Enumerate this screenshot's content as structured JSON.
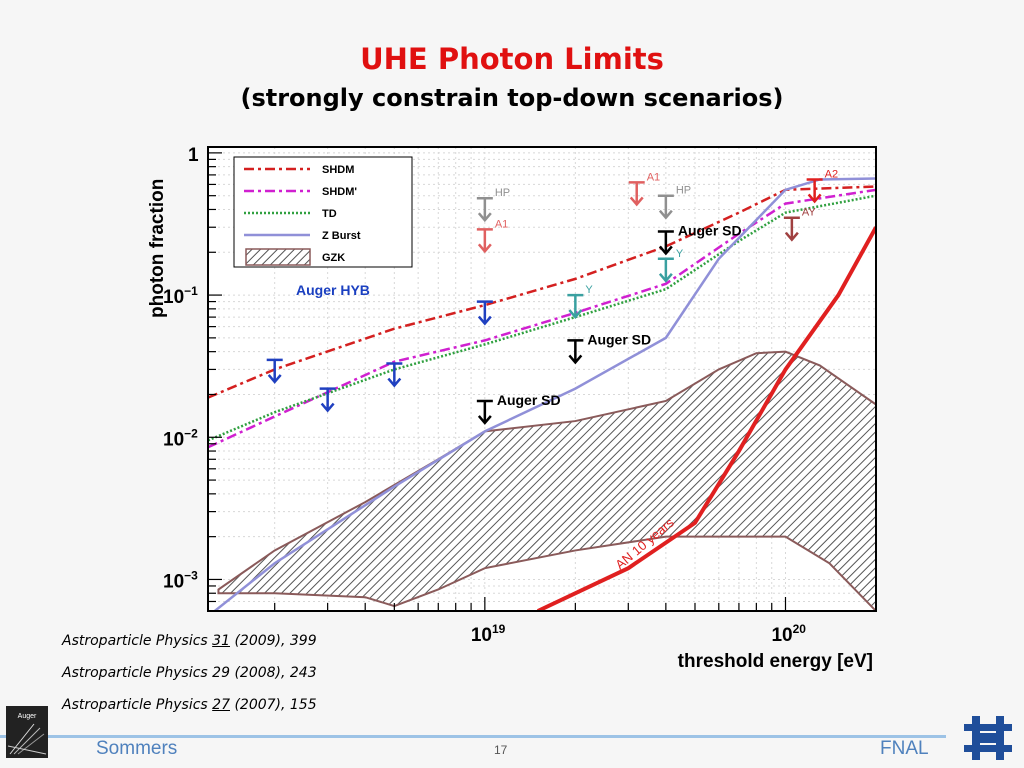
{
  "slide": {
    "title": "UHE Photon Limits",
    "subtitle": "(strongly constrain top-down scenarios)",
    "refs": [
      {
        "journal": "Astroparticle Physics ",
        "vol": "31",
        "rest": " (2009), 399",
        "underline": true
      },
      {
        "journal": "Astroparticle Physics ",
        "vol": "29",
        "rest": " (2008), 243",
        "underline": false
      },
      {
        "journal": "Astroparticle Physics ",
        "vol": "27",
        "rest": " (2007), 155",
        "underline": true
      }
    ],
    "footer": {
      "left": "Sommers",
      "page": "17",
      "right": "FNAL",
      "logo_left_text": "Auger"
    }
  },
  "chart_data": {
    "type": "line",
    "title": "",
    "xlabel": "threshold energy  [eV]",
    "ylabel": "photon fraction",
    "xscale": "log",
    "yscale": "log",
    "xlim": [
      1.2e+18,
      2e+20
    ],
    "ylim": [
      0.0006,
      1.1
    ],
    "x_ticks": [
      {
        "value": 1e+19,
        "label_base": "10",
        "label_exp": "19"
      },
      {
        "value": 1e+20,
        "label_base": "10",
        "label_exp": "20"
      }
    ],
    "y_ticks": [
      {
        "value": 1,
        "label_base": "1",
        "label_exp": ""
      },
      {
        "value": 0.1,
        "label_base": "10",
        "label_exp": "−1"
      },
      {
        "value": 0.01,
        "label_base": "10",
        "label_exp": "−2"
      },
      {
        "value": 0.001,
        "label_base": "10",
        "label_exp": "−3"
      }
    ],
    "legend": {
      "position": "top-left",
      "entries": [
        "SHDM",
        "SHDM'",
        "TD",
        "Z Burst",
        "GZK"
      ]
    },
    "series": [
      {
        "name": "SHDM",
        "color": "#d42020",
        "style": "dashdot",
        "points": [
          [
            1.2e+18,
            0.019
          ],
          [
            2e+18,
            0.03
          ],
          [
            5e+18,
            0.058
          ],
          [
            1e+19,
            0.085
          ],
          [
            2e+19,
            0.13
          ],
          [
            4e+19,
            0.22
          ],
          [
            7e+19,
            0.38
          ],
          [
            1e+20,
            0.55
          ],
          [
            2e+20,
            0.58
          ]
        ]
      },
      {
        "name": "SHDM'",
        "color": "#d020d0",
        "style": "dashdot",
        "points": [
          [
            1.2e+18,
            0.0085
          ],
          [
            2e+18,
            0.014
          ],
          [
            5e+18,
            0.034
          ],
          [
            1e+19,
            0.048
          ],
          [
            2e+19,
            0.075
          ],
          [
            4e+19,
            0.12
          ],
          [
            7e+19,
            0.27
          ],
          [
            1e+20,
            0.44
          ],
          [
            2e+20,
            0.55
          ]
        ]
      },
      {
        "name": "TD",
        "color": "#30a040",
        "style": "dotted",
        "points": [
          [
            1.2e+18,
            0.0095
          ],
          [
            2e+18,
            0.015
          ],
          [
            5e+18,
            0.03
          ],
          [
            1e+19,
            0.045
          ],
          [
            2e+19,
            0.07
          ],
          [
            4e+19,
            0.11
          ],
          [
            7e+19,
            0.24
          ],
          [
            1e+20,
            0.38
          ],
          [
            2e+20,
            0.5
          ]
        ]
      },
      {
        "name": "Z Burst",
        "color": "#9090d8",
        "style": "solid",
        "points": [
          [
            1.2e+18,
            0.00055
          ],
          [
            2e+18,
            0.0013
          ],
          [
            5e+18,
            0.0045
          ],
          [
            1e+19,
            0.011
          ],
          [
            2e+19,
            0.022
          ],
          [
            4e+19,
            0.05
          ],
          [
            6e+19,
            0.18
          ],
          [
            1e+20,
            0.55
          ],
          [
            1.3e+20,
            0.65
          ],
          [
            2e+20,
            0.66
          ]
        ]
      },
      {
        "name": "AN 10 years",
        "color": "#e02020",
        "style": "solid",
        "points": [
          [
            1.5e+19,
            0.0006
          ],
          [
            3e+19,
            0.0012
          ],
          [
            5e+19,
            0.0025
          ],
          [
            7e+19,
            0.008
          ],
          [
            1e+20,
            0.03
          ],
          [
            1.5e+20,
            0.1
          ],
          [
            2e+20,
            0.3
          ]
        ]
      }
    ],
    "gzk_band": {
      "name": "GZK",
      "upper": [
        [
          1.3e+18,
          0.00085
        ],
        [
          2e+18,
          0.0016
        ],
        [
          4e+18,
          0.0035
        ],
        [
          7e+18,
          0.007
        ],
        [
          1e+19,
          0.011
        ],
        [
          2e+19,
          0.013
        ],
        [
          4e+19,
          0.018
        ],
        [
          6e+19,
          0.03
        ],
        [
          8e+19,
          0.039
        ],
        [
          1e+20,
          0.04
        ],
        [
          1.3e+20,
          0.032
        ],
        [
          2e+20,
          0.017
        ]
      ],
      "lower": [
        [
          1.3e+18,
          0.0008
        ],
        [
          2e+18,
          0.0008
        ],
        [
          4e+18,
          0.00075
        ],
        [
          5e+18,
          0.00065
        ],
        [
          7e+18,
          0.00085
        ],
        [
          1e+19,
          0.0012
        ],
        [
          2e+19,
          0.0016
        ],
        [
          4e+19,
          0.002
        ],
        [
          7e+19,
          0.002
        ],
        [
          1e+20,
          0.002
        ],
        [
          1.4e+20,
          0.0013
        ],
        [
          2e+20,
          0.0006
        ]
      ]
    },
    "limits": [
      {
        "x": 2e+18,
        "y": 0.035,
        "color": "#2040c0",
        "label": ""
      },
      {
        "x": 3e+18,
        "y": 0.022,
        "color": "#2040c0",
        "label": ""
      },
      {
        "x": 5e+18,
        "y": 0.033,
        "color": "#2040c0",
        "label": ""
      },
      {
        "x": 1e+19,
        "y": 0.09,
        "color": "#2040c0",
        "label": ""
      },
      {
        "x": 1e+19,
        "y": 0.018,
        "color": "#000000",
        "label": "Auger SD"
      },
      {
        "x": 2e+19,
        "y": 0.048,
        "color": "#000000",
        "label": "Auger SD"
      },
      {
        "x": 4e+19,
        "y": 0.28,
        "color": "#000000",
        "label": "Auger SD"
      },
      {
        "x": 2e+19,
        "y": 0.1,
        "color": "#3aa0a0",
        "label": "Y"
      },
      {
        "x": 4e+19,
        "y": 0.18,
        "color": "#3aa0a0",
        "label": "Y"
      },
      {
        "x": 1e+19,
        "y": 0.48,
        "color": "#909090",
        "label": "HP"
      },
      {
        "x": 4e+19,
        "y": 0.5,
        "color": "#909090",
        "label": "HP"
      },
      {
        "x": 1e+19,
        "y": 0.29,
        "color": "#e06060",
        "label": "A1"
      },
      {
        "x": 3.2e+19,
        "y": 0.62,
        "color": "#e06060",
        "label": "A1"
      },
      {
        "x": 1.25e+20,
        "y": 0.65,
        "color": "#e02020",
        "label": "A2"
      },
      {
        "x": 1.05e+20,
        "y": 0.35,
        "color": "#a04040",
        "label": "AY"
      }
    ],
    "annotations": [
      "Auger HYB",
      "AN 10 years"
    ]
  }
}
